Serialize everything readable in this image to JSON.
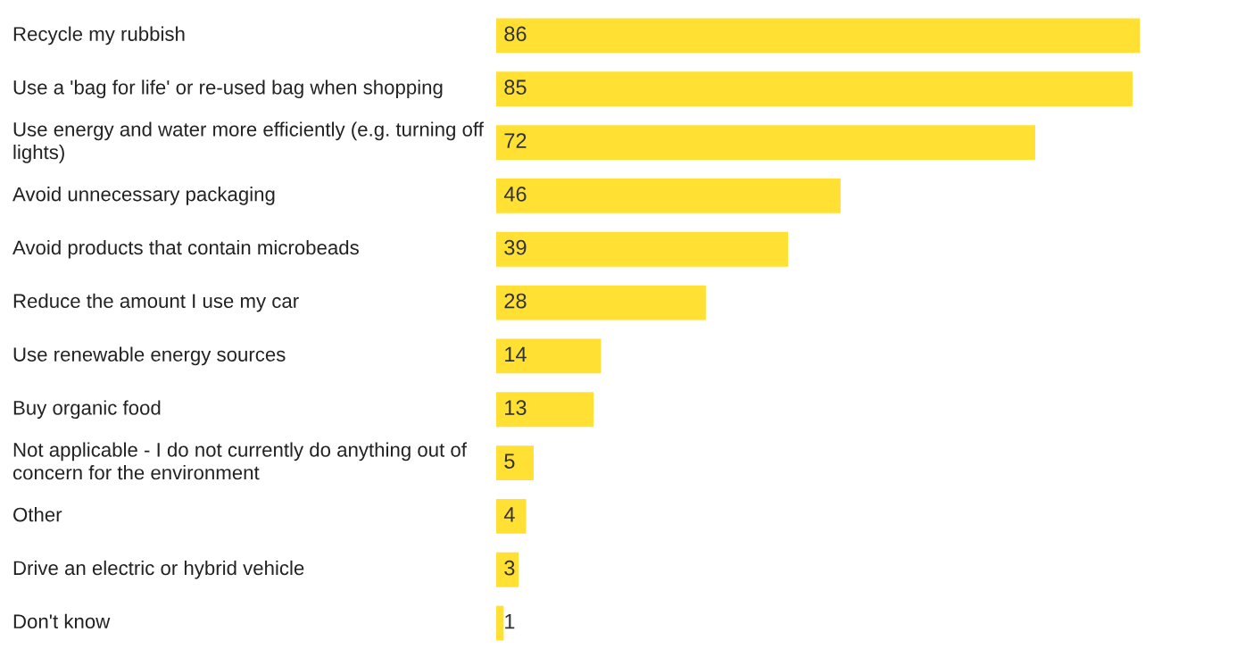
{
  "chart_data": {
    "type": "bar",
    "orientation": "horizontal",
    "categories": [
      "Recycle my rubbish",
      "Use a 'bag for life' or re-used bag when shopping",
      "Use energy and water more efficiently (e.g. turning off\nlights)",
      "Avoid unnecessary packaging",
      "Avoid products that contain microbeads",
      "Reduce the amount I use my car",
      "Use renewable energy sources",
      "Buy organic food",
      "Not applicable - I do not currently do anything out of\nconcern for the environment",
      "Other",
      "Drive an electric or hybrid vehicle",
      "Don't know"
    ],
    "values": [
      86,
      85,
      72,
      46,
      39,
      28,
      14,
      13,
      5,
      4,
      3,
      1
    ],
    "color": "#ffe033",
    "data_labels": true
  }
}
